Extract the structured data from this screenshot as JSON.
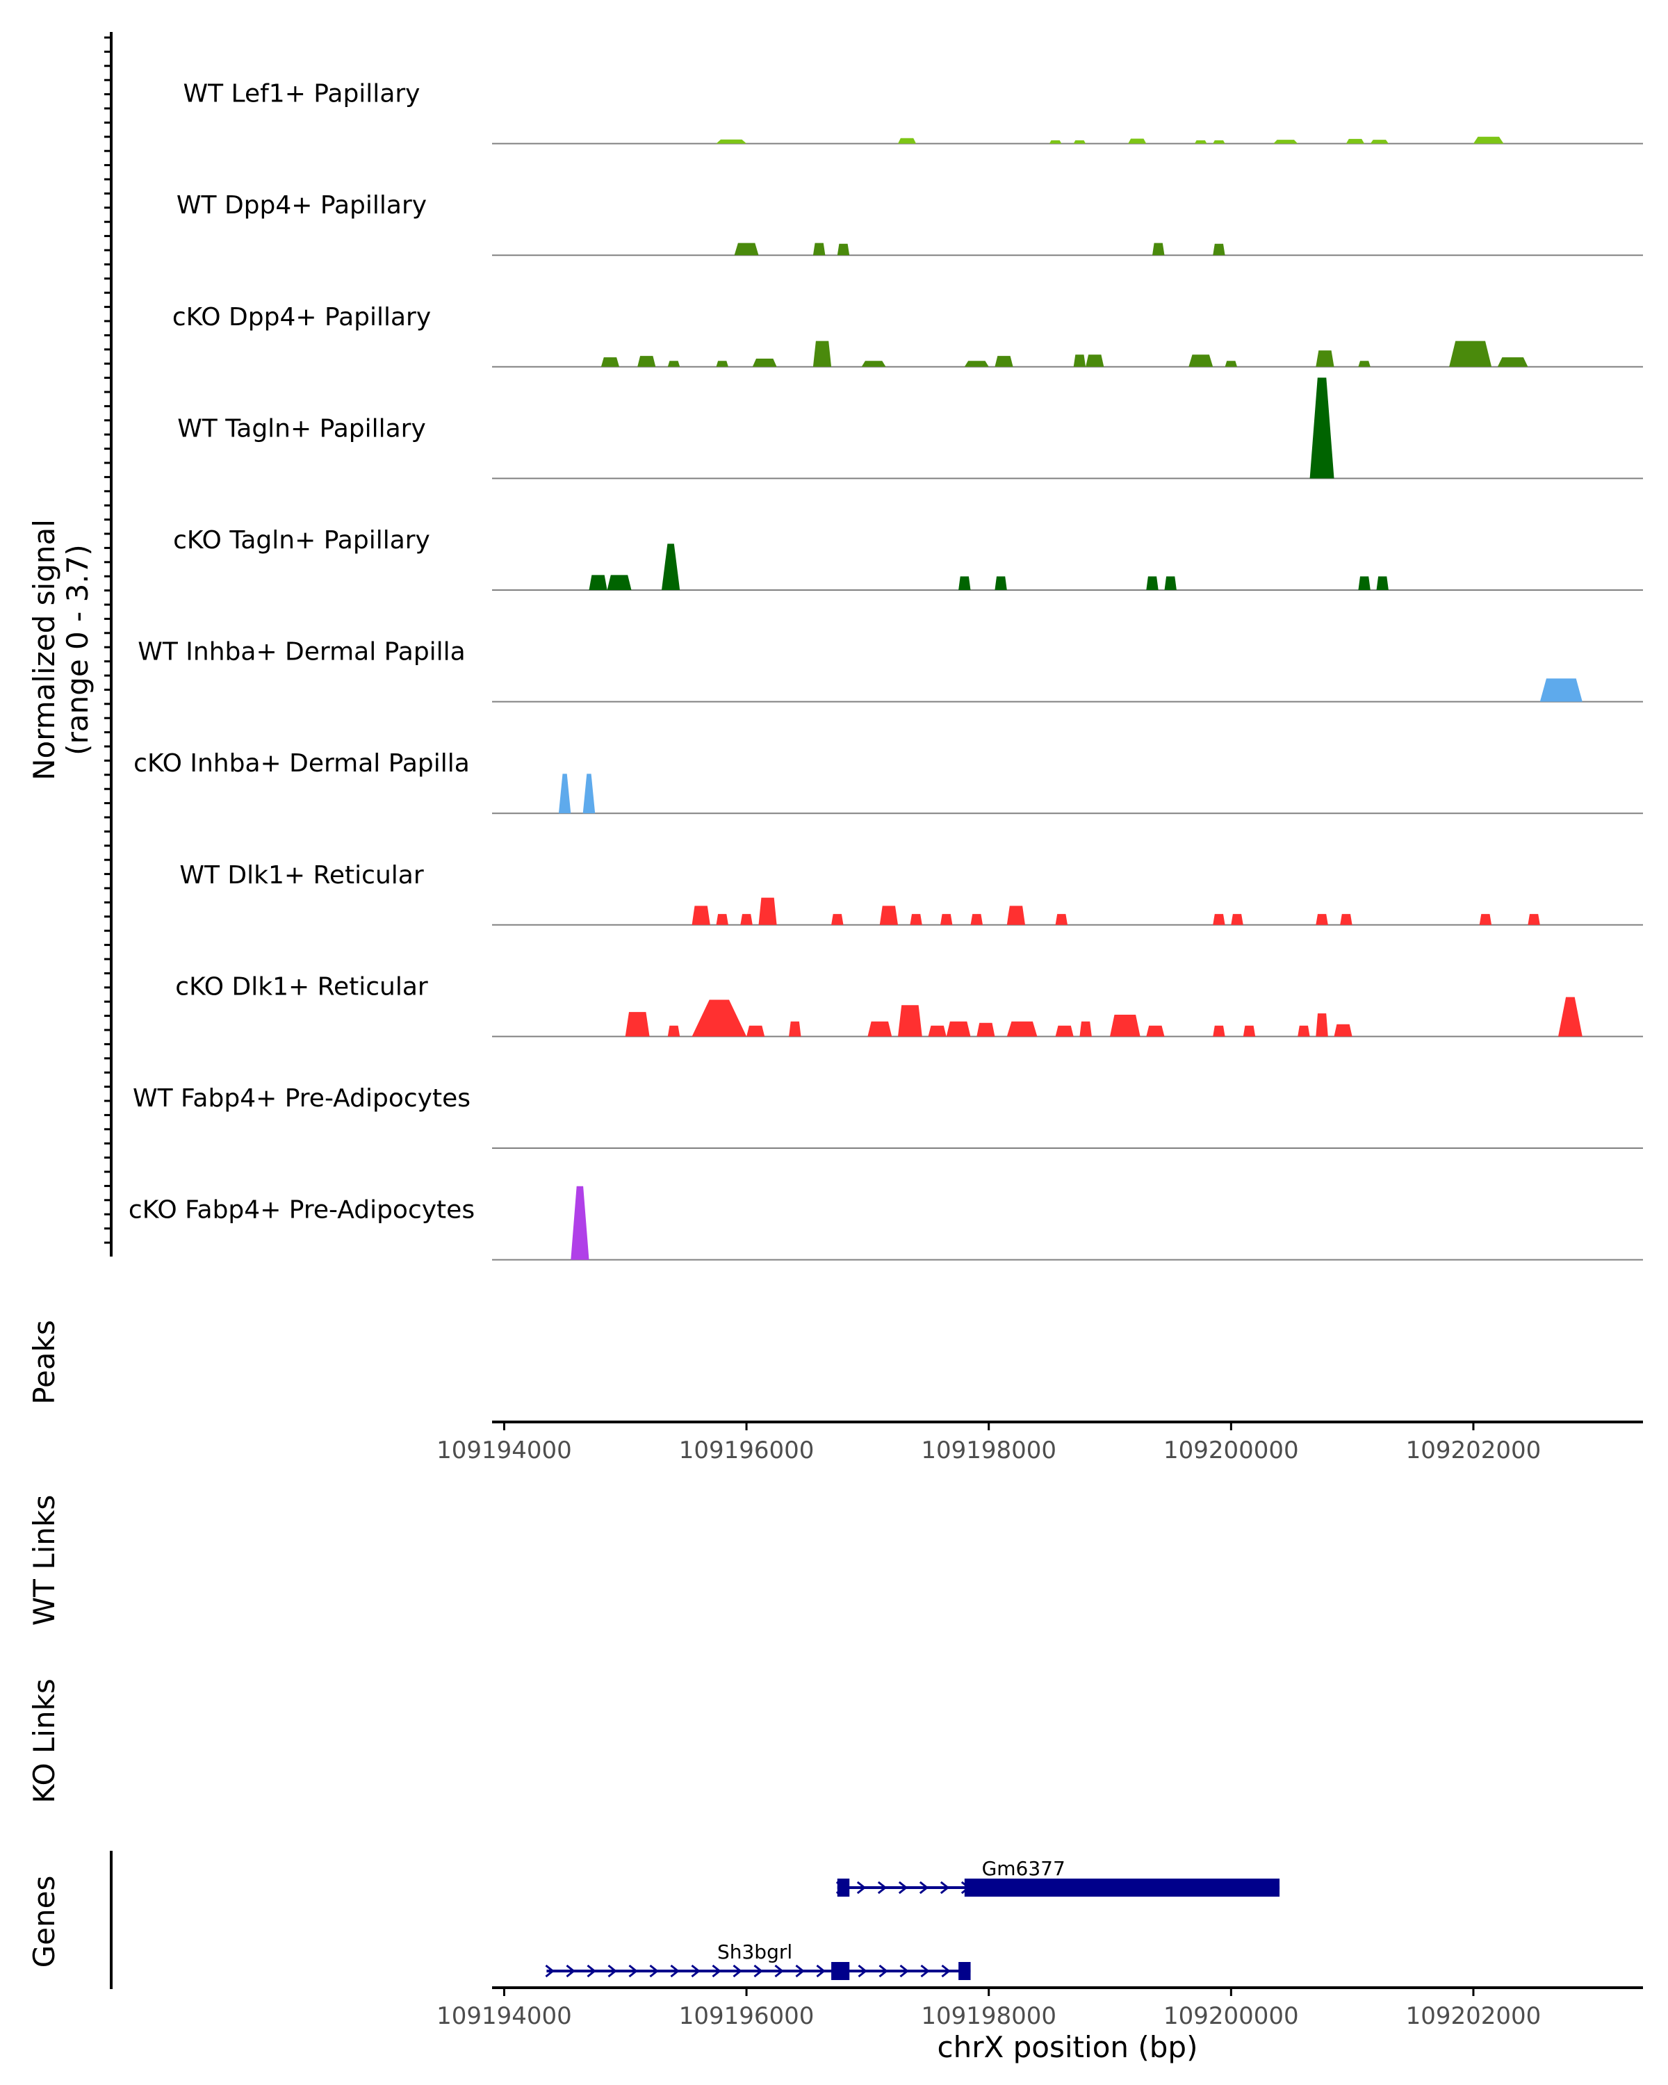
{
  "chart_data": {
    "type": "area",
    "title": "",
    "chromosome": "chrX",
    "xlabel": "chrX position (bp)",
    "xlim": [
      109193900,
      109203400
    ],
    "xticks": [
      109194000,
      109196000,
      109198000,
      109200000,
      109202000
    ],
    "xtick_labels": [
      "109194000",
      "109196000",
      "109198000",
      "109200000",
      "109202000"
    ],
    "ylabel_line1": "Normalized signal",
    "ylabel_line2": "(range 0 - 3.7)",
    "ylim": [
      0,
      3.7
    ],
    "grid": false,
    "tracks": [
      {
        "name": "WT Lef1+ Papillary",
        "color": "#7dc516",
        "peaks": [
          [
            109195750,
            109196000,
            0.15
          ],
          [
            109197250,
            109197400,
            0.2
          ],
          [
            109198500,
            109198600,
            0.12
          ],
          [
            109198700,
            109198800,
            0.12
          ],
          [
            109199150,
            109199300,
            0.18
          ],
          [
            109199700,
            109199800,
            0.12
          ],
          [
            109199850,
            109199950,
            0.12
          ],
          [
            109200350,
            109200550,
            0.14
          ],
          [
            109200950,
            109201100,
            0.17
          ],
          [
            109201150,
            109201300,
            0.14
          ],
          [
            109202000,
            109202250,
            0.25
          ]
        ]
      },
      {
        "name": "WT Dpp4+ Papillary",
        "color": "#4a8a0c",
        "peaks": [
          [
            109195900,
            109196100,
            0.45
          ],
          [
            109196550,
            109196650,
            0.45
          ],
          [
            109196750,
            109196850,
            0.42
          ],
          [
            109199350,
            109199450,
            0.45
          ],
          [
            109199850,
            109199950,
            0.42
          ]
        ]
      },
      {
        "name": "cKO Dpp4+ Papillary",
        "color": "#4a8a0c",
        "peaks": [
          [
            109194800,
            109194950,
            0.35
          ],
          [
            109195100,
            109195250,
            0.4
          ],
          [
            109195350,
            109195450,
            0.22
          ],
          [
            109195750,
            109195850,
            0.22
          ],
          [
            109196050,
            109196250,
            0.3
          ],
          [
            109196550,
            109196700,
            0.95
          ],
          [
            109196950,
            109197150,
            0.22
          ],
          [
            109197800,
            109198000,
            0.22
          ],
          [
            109198050,
            109198200,
            0.4
          ],
          [
            109198700,
            109198800,
            0.45
          ],
          [
            109198800,
            109198950,
            0.45
          ],
          [
            109199650,
            109199850,
            0.45
          ],
          [
            109199950,
            109200050,
            0.22
          ],
          [
            109200700,
            109200850,
            0.6
          ],
          [
            109201050,
            109201150,
            0.22
          ],
          [
            109201800,
            109202150,
            0.95
          ],
          [
            109202200,
            109202450,
            0.35
          ]
        ]
      },
      {
        "name": "WT Tagln+ Papillary",
        "color": "#006400",
        "peaks": [
          [
            109200650,
            109200850,
            3.7
          ]
        ]
      },
      {
        "name": "cKO Tagln+ Papillary",
        "color": "#006400",
        "peaks": [
          [
            109194700,
            109194850,
            0.55
          ],
          [
            109194850,
            109195050,
            0.55
          ],
          [
            109195300,
            109195450,
            1.7
          ],
          [
            109197750,
            109197850,
            0.5
          ],
          [
            109198050,
            109198150,
            0.5
          ],
          [
            109199300,
            109199400,
            0.5
          ],
          [
            109199450,
            109199550,
            0.5
          ],
          [
            109201050,
            109201150,
            0.5
          ],
          [
            109201200,
            109201300,
            0.5
          ]
        ]
      },
      {
        "name": "WT Inhba+ Dermal Papilla",
        "color": "#5eaaec",
        "peaks": [
          [
            109202550,
            109202900,
            0.85
          ]
        ]
      },
      {
        "name": "cKO Inhba+ Dermal Papilla",
        "color": "#5eaaec",
        "peaks": [
          [
            109194450,
            109194550,
            1.45
          ],
          [
            109194650,
            109194750,
            1.45
          ]
        ]
      },
      {
        "name": "WT Dlk1+ Reticular",
        "color": "#ff3030",
        "peaks": [
          [
            109195550,
            109195700,
            0.7
          ],
          [
            109195750,
            109195850,
            0.4
          ],
          [
            109195950,
            109196050,
            0.4
          ],
          [
            109196100,
            109196250,
            1.0
          ],
          [
            109196700,
            109196800,
            0.4
          ],
          [
            109197100,
            109197250,
            0.7
          ],
          [
            109197350,
            109197450,
            0.4
          ],
          [
            109197600,
            109197700,
            0.4
          ],
          [
            109197850,
            109197950,
            0.4
          ],
          [
            109198150,
            109198300,
            0.7
          ],
          [
            109198550,
            109198650,
            0.4
          ],
          [
            109199850,
            109199950,
            0.4
          ],
          [
            109200000,
            109200100,
            0.4
          ],
          [
            109200700,
            109200800,
            0.4
          ],
          [
            109200900,
            109201000,
            0.4
          ],
          [
            109202050,
            109202150,
            0.4
          ],
          [
            109202450,
            109202550,
            0.4
          ]
        ]
      },
      {
        "name": "cKO Dlk1+ Reticular",
        "color": "#ff3030",
        "peaks": [
          [
            109195000,
            109195200,
            0.9
          ],
          [
            109195350,
            109195450,
            0.4
          ],
          [
            109195550,
            109196000,
            1.35
          ],
          [
            109196000,
            109196150,
            0.4
          ],
          [
            109196350,
            109196450,
            0.55
          ],
          [
            109197000,
            109197200,
            0.55
          ],
          [
            109197250,
            109197450,
            1.15
          ],
          [
            109197500,
            109197650,
            0.4
          ],
          [
            109197650,
            109197850,
            0.55
          ],
          [
            109197900,
            109198050,
            0.5
          ],
          [
            109198150,
            109198400,
            0.55
          ],
          [
            109198550,
            109198700,
            0.4
          ],
          [
            109198750,
            109198850,
            0.55
          ],
          [
            109199000,
            109199250,
            0.8
          ],
          [
            109199300,
            109199450,
            0.4
          ],
          [
            109199850,
            109199950,
            0.4
          ],
          [
            109200100,
            109200200,
            0.4
          ],
          [
            109200550,
            109200650,
            0.4
          ],
          [
            109200700,
            109200800,
            0.85
          ],
          [
            109200850,
            109201000,
            0.45
          ],
          [
            109202700,
            109202900,
            1.45
          ]
        ]
      },
      {
        "name": "WT Fabp4+ Pre-Adipocytes",
        "color": "#b040e8",
        "peaks": []
      },
      {
        "name": "cKO Fabp4+ Pre-Adipocytes",
        "color": "#b040e8",
        "peaks": [
          [
            109194550,
            109194700,
            2.7
          ]
        ]
      }
    ],
    "peaks_label": "Peaks",
    "wt_links_label": "WT Links",
    "ko_links_label": "KO Links",
    "genes_label": "Genes",
    "gene_color": "#00008b",
    "genes": [
      {
        "name": "Gm6377",
        "start": 109196750,
        "end": 109200400,
        "exons": [
          [
            109196750,
            109196850
          ],
          [
            109197800,
            109200400
          ]
        ]
      },
      {
        "name": "Sh3bgrl",
        "start": 109194350,
        "end": 109197850,
        "exons": [
          [
            109196700,
            109196850
          ],
          [
            109197750,
            109197850
          ]
        ]
      }
    ]
  }
}
